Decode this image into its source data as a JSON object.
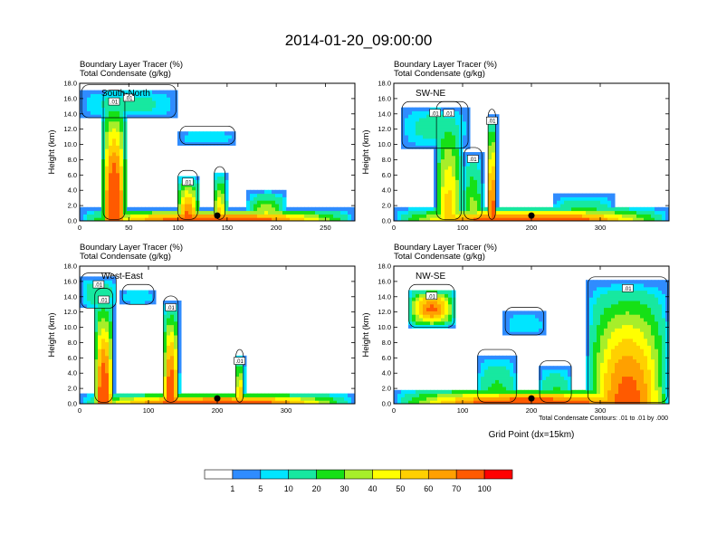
{
  "figure": {
    "title": "2014-01-20_09:00:00",
    "note": "Total Condensate Contours: .01 to .01 by .000",
    "xlabel": "Grid Point (dx=15km)"
  },
  "chart_data": [
    {
      "type": "heatmap",
      "panel_label": "South-North",
      "title_lines": [
        "Boundary Layer Tracer    (%)",
        "Total Condensate    (g/kg)"
      ],
      "ylabel": "Height (km)",
      "xlabel": "",
      "xlim": [
        0,
        280
      ],
      "xticks": [
        "0",
        "50",
        "100",
        "150",
        "200",
        "250"
      ],
      "ylim": [
        0,
        18
      ],
      "yticks": [
        "0.0",
        "2.0",
        "4.0",
        "6.0",
        "8.0",
        "10.0",
        "12.0",
        "14.0",
        "16.0",
        "18.0"
      ],
      "marker_x": 140,
      "contour_labels": [
        ".01",
        ".01",
        ".01"
      ],
      "features": [
        {
          "x0": 0,
          "x1": 280,
          "top": 1.6,
          "peak": 85
        },
        {
          "x0": 22,
          "x1": 48,
          "top": 16.5,
          "peak": 95
        },
        {
          "x0": 0,
          "x1": 100,
          "base": 13.5,
          "top": 17.2,
          "peak": 12
        },
        {
          "x0": 98,
          "x1": 122,
          "top": 6.0,
          "peak": 75
        },
        {
          "x0": 135,
          "x1": 150,
          "top": 6.5,
          "peak": 55
        },
        {
          "x0": 170,
          "x1": 210,
          "top": 4.0,
          "peak": 45
        },
        {
          "x0": 100,
          "x1": 160,
          "base": 10.0,
          "top": 11.8,
          "peak": 8
        }
      ]
    },
    {
      "type": "heatmap",
      "panel_label": "SW-NE",
      "title_lines": [
        "Boundary Layer Tracer    (%)",
        "Total Condensate    (g/kg)"
      ],
      "ylabel": "Height (km)",
      "xlabel": "",
      "xlim": [
        0,
        400
      ],
      "xticks": [
        "0",
        "100",
        "200",
        "300"
      ],
      "ylim": [
        0,
        18
      ],
      "yticks": [
        "0.0",
        "2.0",
        "4.0",
        "6.0",
        "8.0",
        "10.0",
        "12.0",
        "14.0",
        "16.0",
        "18.0"
      ],
      "marker_x": 200,
      "contour_labels": [
        ".01",
        ".01",
        ".01",
        ".01"
      ],
      "features": [
        {
          "x0": 0,
          "x1": 400,
          "top": 1.8,
          "peak": 85
        },
        {
          "x0": 60,
          "x1": 100,
          "top": 15.0,
          "peak": 55
        },
        {
          "x0": 10,
          "x1": 110,
          "base": 9.5,
          "top": 15.0,
          "peak": 12
        },
        {
          "x0": 135,
          "x1": 150,
          "top": 14.0,
          "peak": 80
        },
        {
          "x0": 100,
          "x1": 130,
          "top": 9.0,
          "peak": 35
        },
        {
          "x0": 230,
          "x1": 320,
          "top": 3.5,
          "peak": 30
        }
      ]
    },
    {
      "type": "heatmap",
      "panel_label": "West-East",
      "title_lines": [
        "Boundary Layer Tracer    (%)",
        "Total Condensate    (g/kg)"
      ],
      "ylabel": "Height (km)",
      "xlabel": "",
      "xlim": [
        0,
        400
      ],
      "xticks": [
        "0",
        "100",
        "200",
        "300"
      ],
      "ylim": [
        0,
        18
      ],
      "yticks": [
        "0.0",
        "2.0",
        "4.0",
        "6.0",
        "8.0",
        "10.0",
        "12.0",
        "14.0",
        "16.0",
        "18.0"
      ],
      "marker_x": 200,
      "contour_labels": [
        ".01",
        ".01",
        ".01",
        ".01"
      ],
      "features": [
        {
          "x0": 0,
          "x1": 400,
          "top": 1.4,
          "peak": 85
        },
        {
          "x0": 20,
          "x1": 50,
          "top": 14.5,
          "peak": 85
        },
        {
          "x0": 0,
          "x1": 55,
          "base": 12.5,
          "top": 16.5,
          "peak": 15
        },
        {
          "x0": 120,
          "x1": 145,
          "top": 13.5,
          "peak": 85
        },
        {
          "x0": 225,
          "x1": 240,
          "top": 6.5,
          "peak": 60
        },
        {
          "x0": 60,
          "x1": 110,
          "base": 13.0,
          "top": 15.0,
          "peak": 8
        }
      ]
    },
    {
      "type": "heatmap",
      "panel_label": "NW-SE",
      "title_lines": [
        "Boundary Layer Tracer    (%)",
        "Total Condensate    (g/kg)"
      ],
      "ylabel": "Height (km)",
      "xlabel": "Grid Point (dx=15km)",
      "xlim": [
        0,
        400
      ],
      "xticks": [
        "0",
        "100",
        "200",
        "300"
      ],
      "ylim": [
        0,
        18
      ],
      "yticks": [
        "0.0",
        "2.0",
        "4.0",
        "6.0",
        "8.0",
        "10.0",
        "12.0",
        "14.0",
        "16.0",
        "18.0"
      ],
      "marker_x": 200,
      "contour_labels": [
        ".01",
        ".01"
      ],
      "features": [
        {
          "x0": 0,
          "x1": 400,
          "top": 2.0,
          "peak": 85
        },
        {
          "x0": 20,
          "x1": 90,
          "base": 10.0,
          "top": 15.0,
          "peak": 70
        },
        {
          "x0": 280,
          "x1": 400,
          "top": 16.0,
          "peak": 75
        },
        {
          "x0": 120,
          "x1": 180,
          "top": 6.5,
          "peak": 25
        },
        {
          "x0": 210,
          "x1": 260,
          "top": 5.0,
          "peak": 25
        },
        {
          "x0": 160,
          "x1": 220,
          "base": 9.0,
          "top": 12.0,
          "peak": 8
        }
      ]
    }
  ],
  "colorbar": {
    "labels": [
      "1",
      "5",
      "10",
      "20",
      "30",
      "40",
      "50",
      "60",
      "70",
      "100"
    ],
    "colors": [
      "#ffffff",
      "#2f8cff",
      "#00e5ff",
      "#17e8a0",
      "#16e016",
      "#a7ee2a",
      "#ffff00",
      "#ffd000",
      "#ffa000",
      "#ff5a00",
      "#ff0000"
    ]
  }
}
